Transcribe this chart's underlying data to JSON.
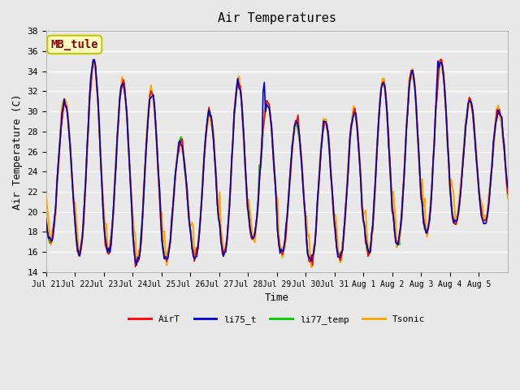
{
  "title": "Air Temperatures",
  "xlabel": "Time",
  "ylabel": "Air Temperature (C)",
  "ylim": [
    14,
    38
  ],
  "yticks": [
    14,
    16,
    18,
    20,
    22,
    24,
    26,
    28,
    30,
    32,
    34,
    36,
    38
  ],
  "annotation_text": "MB_tule",
  "annotation_color": "#8B0000",
  "annotation_bg": "#FFFFC0",
  "annotation_border": "#C8C800",
  "line_colors": {
    "AirT": "#FF0000",
    "li75_t": "#0000CC",
    "li77_temp": "#00CC00",
    "Tsonic": "#FFA500"
  },
  "line_widths": {
    "AirT": 1.2,
    "li75_t": 1.2,
    "li77_temp": 1.5,
    "Tsonic": 1.5
  },
  "x_tick_labels": [
    "Jul 21",
    "Jul 22",
    "Jul 23",
    "Jul 24",
    "Jul 25",
    "Jul 26",
    "Jul 27",
    "Jul 28",
    "Jul 29",
    "Jul 30",
    "Jul 31",
    "Aug 1",
    "Aug 2",
    "Aug 3",
    "Aug 4",
    "Aug 5"
  ],
  "background_color": "#E8E8E8",
  "grid_color": "#FFFFFF",
  "num_days": 16,
  "points_per_day": 24,
  "day_mins": [
    17,
    16,
    16,
    15,
    15.5,
    15.5,
    16,
    17.5,
    16,
    15,
    15.5,
    16,
    17,
    18,
    19,
    19
  ],
  "day_maxs": [
    31,
    35,
    33,
    32,
    27,
    30,
    33,
    31,
    29,
    29,
    30,
    33,
    34,
    35,
    31,
    30
  ]
}
